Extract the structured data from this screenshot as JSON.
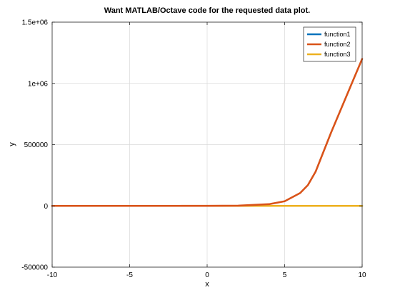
{
  "chart_data": {
    "type": "line",
    "title": "Want MATLAB/Octave code for the requested data plot.",
    "xlabel": "x",
    "ylabel": "y",
    "xlim": [
      -10,
      10
    ],
    "ylim": [
      -500000,
      1500000
    ],
    "x_ticks": [
      -10,
      -5,
      0,
      5,
      10
    ],
    "x_tick_labels": [
      "-10",
      "-5",
      "0",
      "5",
      "10"
    ],
    "y_ticks": [
      -500000,
      0,
      500000,
      1000000,
      1500000
    ],
    "y_tick_labels": [
      "-500000",
      "0",
      "500000",
      "1e+06",
      "1.5e+06"
    ],
    "grid": true,
    "legend_location": "top-right",
    "x": [
      -10,
      -8,
      -6,
      -4,
      -2,
      0,
      2,
      4,
      5,
      6,
      6.5,
      7,
      7.5,
      8,
      8.5,
      9,
      9.5,
      10
    ],
    "series": [
      {
        "name": "function1",
        "color": "#0072bd",
        "values": [
          0,
          0,
          0,
          0,
          0,
          0,
          0,
          0,
          0,
          0,
          0,
          0,
          0,
          0,
          0,
          0,
          0,
          0
        ]
      },
      {
        "name": "function2",
        "color": "#d95319",
        "values": [
          0,
          0,
          0,
          5,
          35,
          250,
          1900,
          14000,
          38000,
          105000,
          170000,
          280000,
          440000,
          600000,
          750000,
          900000,
          1050000,
          1200000
        ]
      },
      {
        "name": "function3",
        "color": "#edb120",
        "values": [
          0,
          0,
          0,
          0,
          0,
          0,
          0,
          0,
          0,
          0,
          0,
          0,
          0,
          0,
          0,
          0,
          0,
          0
        ]
      }
    ]
  }
}
